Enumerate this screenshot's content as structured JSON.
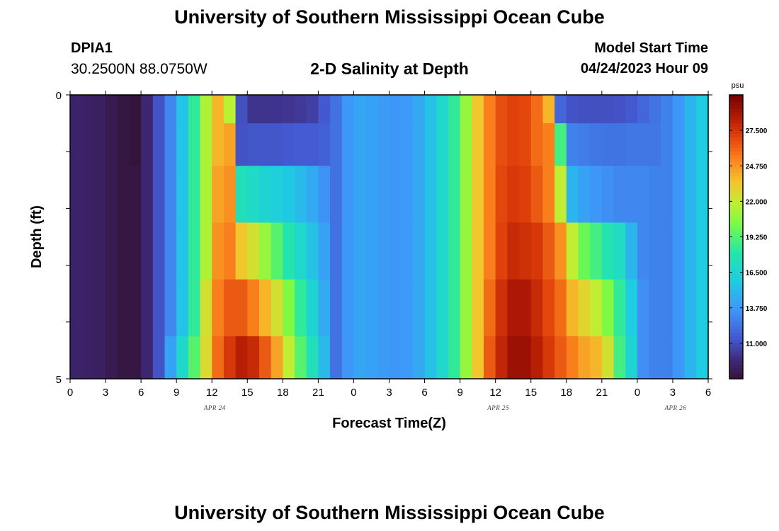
{
  "header": {
    "title": "University of Southern Mississippi Ocean Cube",
    "station": "DPIA1",
    "coords": "30.2500N  88.0750W",
    "subtitle": "2-D Salinity at Depth",
    "start_label": "Model Start Time",
    "start_value": "04/24/2023 Hour 09"
  },
  "footer": {
    "title": "University of Southern Mississippi Ocean Cube"
  },
  "chart_data": {
    "type": "heatmap",
    "title": "2-D Salinity at Depth",
    "xlabel": "Forecast Time(Z)",
    "ylabel": "Depth (ft)",
    "x_tick_labels": [
      "0",
      "3",
      "6",
      "9",
      "12",
      "15",
      "18",
      "21",
      "0",
      "3",
      "6",
      "9",
      "12",
      "15",
      "18",
      "21",
      "0",
      "3",
      "6"
    ],
    "date_labels": [
      {
        "label": "APR 24",
        "hour": 12
      },
      {
        "label": "APR 25",
        "hour": 36
      },
      {
        "label": "APR 26",
        "hour": 51
      }
    ],
    "x_range_hours": [
      0,
      54
    ],
    "y_tick_labels": [
      "0",
      "5"
    ],
    "ylim": [
      0,
      5
    ],
    "y_minor_ticks": 4,
    "colorbar": {
      "units": "psu",
      "range": [
        8.25,
        30.25
      ],
      "tick_values": [
        11.0,
        13.75,
        16.5,
        19.25,
        22.0,
        24.75,
        27.5
      ],
      "tick_labels": [
        "11.000",
        "13.750",
        "16.500",
        "19.250",
        "22.000",
        "24.750",
        "27.500"
      ]
    },
    "depth_layers": [
      0.25,
      0.75,
      1.75,
      2.75,
      3.75,
      4.75
    ],
    "columns": [
      {
        "t": 0,
        "s": [
          9.5,
          9.5,
          9.5,
          9.5,
          9.5,
          9.5
        ]
      },
      {
        "t": 1,
        "s": [
          9.4,
          9.4,
          9.4,
          9.4,
          9.4,
          9.4
        ]
      },
      {
        "t": 2,
        "s": [
          9.2,
          9.2,
          9.2,
          9.2,
          9.2,
          9.2
        ]
      },
      {
        "t": 3,
        "s": [
          8.9,
          8.9,
          8.9,
          8.9,
          8.9,
          8.9
        ]
      },
      {
        "t": 4,
        "s": [
          8.6,
          8.6,
          8.6,
          8.6,
          8.6,
          8.6
        ]
      },
      {
        "t": 5,
        "s": [
          8.4,
          8.4,
          8.6,
          8.6,
          8.6,
          8.6
        ]
      },
      {
        "t": 6,
        "s": [
          9.6,
          9.6,
          9.6,
          9.6,
          9.6,
          9.6
        ]
      },
      {
        "t": 7,
        "s": [
          11.3,
          11.3,
          11.3,
          11.3,
          11.3,
          11.3
        ]
      },
      {
        "t": 8,
        "s": [
          13.2,
          13.2,
          13.2,
          13.2,
          13.2,
          14.2
        ]
      },
      {
        "t": 9,
        "s": [
          15.6,
          15.6,
          15.6,
          15.6,
          15.6,
          16.8
        ]
      },
      {
        "t": 10,
        "s": [
          18.5,
          18.5,
          18.5,
          18.5,
          18.5,
          19.5
        ]
      },
      {
        "t": 11,
        "s": [
          21.5,
          21.5,
          21.5,
          21.5,
          22.5,
          22.8
        ]
      },
      {
        "t": 12,
        "s": [
          24.0,
          24.0,
          24.5,
          25.0,
          25.5,
          26.0
        ]
      },
      {
        "t": 13,
        "s": [
          21.8,
          24.5,
          25.0,
          25.5,
          26.5,
          27.5
        ]
      },
      {
        "t": 14,
        "s": [
          11.2,
          11.3,
          17.5,
          23.5,
          26.5,
          28.5
        ]
      },
      {
        "t": 15,
        "s": [
          10.2,
          11.4,
          17.0,
          22.5,
          25.5,
          28.0
        ]
      },
      {
        "t": 16,
        "s": [
          10.2,
          11.4,
          16.5,
          21.0,
          24.0,
          26.5
        ]
      },
      {
        "t": 17,
        "s": [
          10.2,
          11.4,
          16.2,
          19.5,
          22.5,
          24.5
        ]
      },
      {
        "t": 18,
        "s": [
          10.3,
          11.5,
          15.8,
          18.0,
          20.5,
          22.0
        ]
      },
      {
        "t": 19,
        "s": [
          10.4,
          11.6,
          15.2,
          16.8,
          18.5,
          19.5
        ]
      },
      {
        "t": 20,
        "s": [
          10.6,
          11.6,
          14.5,
          15.5,
          16.5,
          17.5
        ]
      },
      {
        "t": 21,
        "s": [
          11.5,
          11.8,
          13.6,
          14.2,
          14.6,
          15.2
        ]
      },
      {
        "t": 22,
        "s": [
          12.4,
          12.4,
          12.4,
          12.4,
          12.4,
          12.4
        ]
      },
      {
        "t": 23,
        "s": [
          13.8,
          13.8,
          13.8,
          13.8,
          13.8,
          13.8
        ]
      },
      {
        "t": 24,
        "s": [
          14.4,
          14.4,
          14.4,
          14.4,
          14.4,
          14.4
        ]
      },
      {
        "t": 25,
        "s": [
          14.2,
          14.2,
          14.2,
          14.2,
          14.2,
          14.2
        ]
      },
      {
        "t": 26,
        "s": [
          14.0,
          14.0,
          14.0,
          14.0,
          14.0,
          14.0
        ]
      },
      {
        "t": 27,
        "s": [
          13.8,
          13.8,
          13.8,
          13.8,
          13.8,
          13.8
        ]
      },
      {
        "t": 28,
        "s": [
          13.9,
          13.9,
          13.9,
          13.9,
          13.9,
          13.9
        ]
      },
      {
        "t": 29,
        "s": [
          14.5,
          14.5,
          14.5,
          14.5,
          14.5,
          14.5
        ]
      },
      {
        "t": 30,
        "s": [
          15.5,
          15.5,
          15.5,
          15.5,
          15.5,
          15.5
        ]
      },
      {
        "t": 31,
        "s": [
          16.8,
          16.8,
          16.8,
          16.8,
          16.8,
          16.8
        ]
      },
      {
        "t": 32,
        "s": [
          18.5,
          18.5,
          18.5,
          18.5,
          18.5,
          18.5
        ]
      },
      {
        "t": 33,
        "s": [
          21.0,
          21.0,
          21.0,
          21.0,
          21.0,
          21.0
        ]
      },
      {
        "t": 34,
        "s": [
          23.5,
          23.5,
          23.5,
          23.5,
          23.5,
          23.5
        ]
      },
      {
        "t": 35,
        "s": [
          25.5,
          25.5,
          25.5,
          25.5,
          26.0,
          26.5
        ]
      },
      {
        "t": 36,
        "s": [
          26.8,
          26.8,
          27.0,
          27.2,
          27.8,
          28.2
        ]
      },
      {
        "t": 37,
        "s": [
          27.2,
          27.2,
          27.5,
          28.0,
          28.8,
          29.3
        ]
      },
      {
        "t": 38,
        "s": [
          27.0,
          27.0,
          27.3,
          27.8,
          28.8,
          29.3
        ]
      },
      {
        "t": 39,
        "s": [
          26.0,
          26.0,
          26.5,
          27.5,
          28.0,
          28.5
        ]
      },
      {
        "t": 40,
        "s": [
          24.0,
          25.5,
          25.5,
          26.5,
          27.0,
          27.5
        ]
      },
      {
        "t": 41,
        "s": [
          12.0,
          19.0,
          22.0,
          25.0,
          26.0,
          26.5
        ]
      },
      {
        "t": 42,
        "s": [
          11.3,
          13.0,
          15.0,
          22.0,
          24.0,
          25.5
        ]
      },
      {
        "t": 43,
        "s": [
          11.2,
          12.8,
          14.2,
          20.0,
          23.0,
          24.5
        ]
      },
      {
        "t": 44,
        "s": [
          11.2,
          12.6,
          13.8,
          19.0,
          22.0,
          24.0
        ]
      },
      {
        "t": 45,
        "s": [
          11.2,
          12.5,
          13.5,
          18.0,
          20.5,
          22.5
        ]
      },
      {
        "t": 46,
        "s": [
          11.3,
          12.5,
          13.2,
          17.2,
          18.5,
          19.0
        ]
      },
      {
        "t": 47,
        "s": [
          11.5,
          12.6,
          13.2,
          15.0,
          16.0,
          16.5
        ]
      },
      {
        "t": 48,
        "s": [
          12.0,
          12.6,
          13.2,
          13.2,
          13.5,
          13.5
        ]
      },
      {
        "t": 49,
        "s": [
          12.5,
          12.6,
          13.0,
          13.0,
          13.0,
          13.0
        ]
      },
      {
        "t": 50,
        "s": [
          13.0,
          13.0,
          13.0,
          13.0,
          13.0,
          13.0
        ]
      },
      {
        "t": 51,
        "s": [
          13.8,
          13.8,
          13.8,
          13.8,
          13.8,
          13.8
        ]
      },
      {
        "t": 52,
        "s": [
          15.0,
          15.0,
          15.0,
          15.0,
          15.0,
          15.0
        ]
      },
      {
        "t": 53,
        "s": [
          16.0,
          16.0,
          16.0,
          16.0,
          16.0,
          16.0
        ]
      }
    ]
  }
}
